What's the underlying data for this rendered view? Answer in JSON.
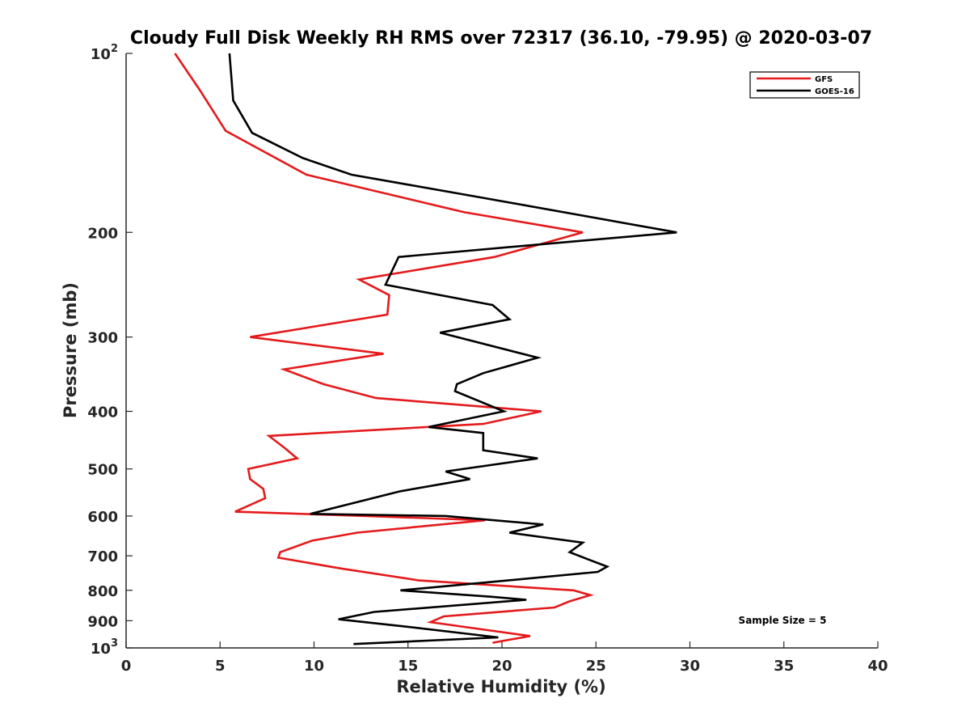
{
  "chart_data": {
    "type": "line",
    "title": "Cloudy Full Disk Weekly RH RMS over 72317 (36.10, -79.95) @ 2020-03-07",
    "xlabel": "Relative Humidity (%)",
    "ylabel": "Pressure (mb)",
    "xlim": [
      0,
      40
    ],
    "ylim": [
      100,
      1000
    ],
    "y_scale": "log",
    "y_reversed": true,
    "grid": false,
    "legend_position": "top-right",
    "x_ticks": [
      "0",
      "5",
      "10",
      "15",
      "20",
      "25",
      "30",
      "35",
      "40"
    ],
    "y_ticks": [
      {
        "value": 100,
        "base": "10",
        "exp": "2"
      },
      {
        "value": 200,
        "label": "200"
      },
      {
        "value": 300,
        "label": "300"
      },
      {
        "value": 400,
        "label": "400"
      },
      {
        "value": 500,
        "label": "500"
      },
      {
        "value": 600,
        "label": "600"
      },
      {
        "value": 700,
        "label": "700"
      },
      {
        "value": 800,
        "label": "800"
      },
      {
        "value": 900,
        "label": "900"
      },
      {
        "value": 1000,
        "base": "10",
        "exp": "3"
      }
    ],
    "annotation": "Sample Size = 5",
    "series": [
      {
        "name": "GFS",
        "color": "#e41a1c",
        "points": [
          [
            2.6,
            100
          ],
          [
            3.9,
            115
          ],
          [
            5.3,
            135
          ],
          [
            9.6,
            160
          ],
          [
            18.0,
            185
          ],
          [
            24.3,
            200
          ],
          [
            19.6,
            220
          ],
          [
            12.4,
            240
          ],
          [
            14.0,
            255
          ],
          [
            13.9,
            275
          ],
          [
            6.6,
            300
          ],
          [
            13.7,
            320
          ],
          [
            8.4,
            340
          ],
          [
            10.5,
            360
          ],
          [
            13.3,
            380
          ],
          [
            22.1,
            400
          ],
          [
            19.0,
            420
          ],
          [
            7.6,
            440
          ],
          [
            8.4,
            460
          ],
          [
            9.1,
            480
          ],
          [
            6.5,
            500
          ],
          [
            6.6,
            520
          ],
          [
            7.3,
            540
          ],
          [
            7.4,
            560
          ],
          [
            5.8,
            590
          ],
          [
            12.8,
            600
          ],
          [
            19.1,
            610
          ],
          [
            12.3,
            640
          ],
          [
            9.9,
            660
          ],
          [
            8.2,
            690
          ],
          [
            8.1,
            705
          ],
          [
            11.4,
            735
          ],
          [
            15.6,
            770
          ],
          [
            23.8,
            800
          ],
          [
            24.7,
            815
          ],
          [
            23.6,
            835
          ],
          [
            22.8,
            855
          ],
          [
            16.9,
            885
          ],
          [
            16.2,
            905
          ],
          [
            17.8,
            920
          ],
          [
            21.5,
            955
          ],
          [
            19.5,
            980
          ]
        ]
      },
      {
        "name": "GOES-16",
        "color": "#000000",
        "points": [
          [
            5.5,
            100
          ],
          [
            5.7,
            120
          ],
          [
            6.7,
            136
          ],
          [
            9.4,
            150
          ],
          [
            12.0,
            160
          ],
          [
            19.0,
            175
          ],
          [
            29.3,
            200
          ],
          [
            21.7,
            210
          ],
          [
            14.5,
            220
          ],
          [
            13.8,
            245
          ],
          [
            19.5,
            265
          ],
          [
            20.4,
            280
          ],
          [
            16.7,
            295
          ],
          [
            21.9,
            325
          ],
          [
            19.0,
            345
          ],
          [
            17.6,
            360
          ],
          [
            17.5,
            370
          ],
          [
            20.1,
            400
          ],
          [
            16.1,
            425
          ],
          [
            19.0,
            435
          ],
          [
            19.0,
            465
          ],
          [
            21.9,
            480
          ],
          [
            17.0,
            505
          ],
          [
            18.3,
            520
          ],
          [
            14.6,
            545
          ],
          [
            9.8,
            595
          ],
          [
            17.0,
            600
          ],
          [
            22.2,
            620
          ],
          [
            20.4,
            640
          ],
          [
            24.3,
            665
          ],
          [
            23.6,
            690
          ],
          [
            24.6,
            710
          ],
          [
            25.6,
            730
          ],
          [
            25.1,
            745
          ],
          [
            20.3,
            770
          ],
          [
            14.6,
            800
          ],
          [
            19.4,
            820
          ],
          [
            21.3,
            830
          ],
          [
            13.2,
            870
          ],
          [
            11.3,
            895
          ],
          [
            14.8,
            920
          ],
          [
            19.8,
            960
          ],
          [
            12.1,
            985
          ]
        ]
      }
    ]
  }
}
